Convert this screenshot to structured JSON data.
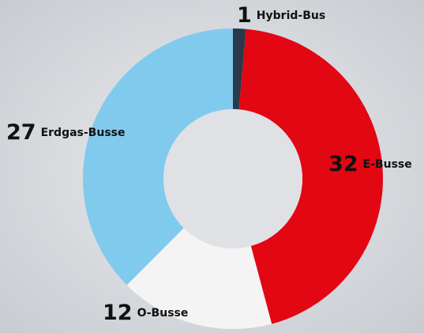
{
  "chart_data": {
    "type": "donut",
    "categories": [
      "Hybrid-Bus",
      "E-Busse",
      "O-Busse",
      "Erdgas-Busse"
    ],
    "values": [
      1,
      32,
      12,
      27
    ],
    "colors": [
      "#2a3a4c",
      "#e30613",
      "#f4f4f4",
      "#80caee"
    ]
  }
}
